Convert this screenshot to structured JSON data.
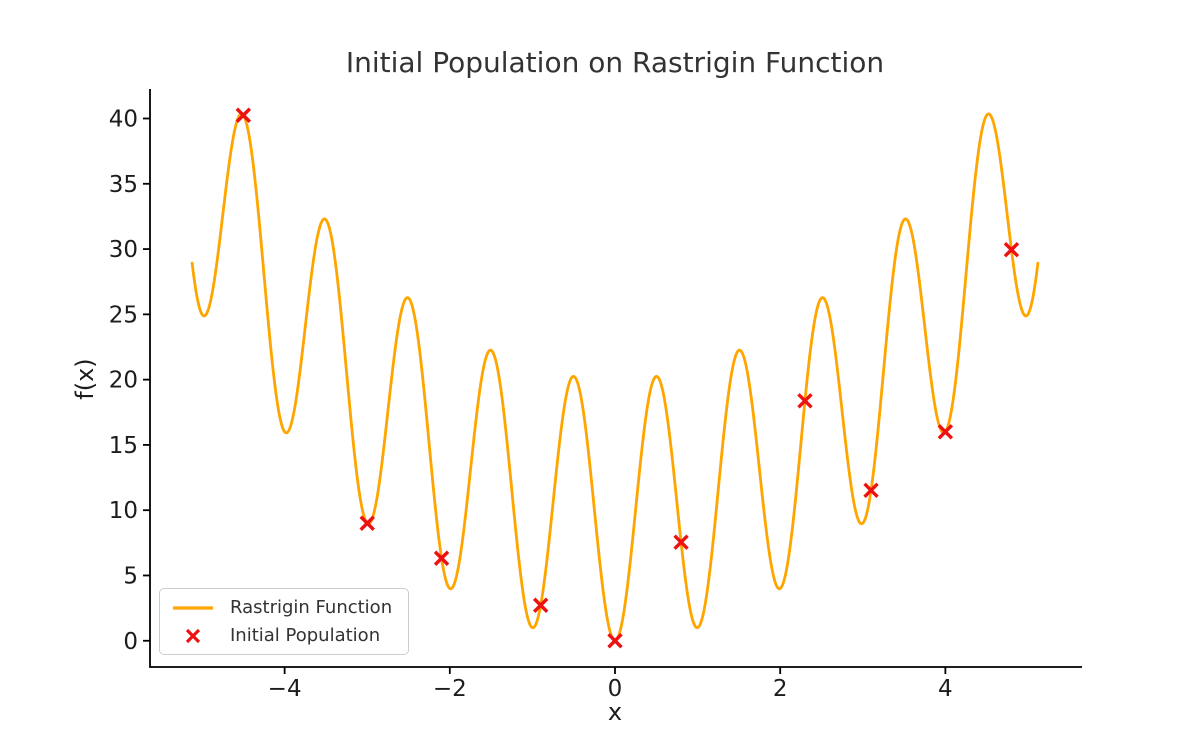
{
  "figure": {
    "background": "#ffffff",
    "spine_color": "#000000",
    "tick_text_color": "#1c1c1c",
    "title_color": "#333333"
  },
  "chart_data": {
    "type": "line",
    "title": "Initial Population on Rastrigin Function",
    "xlabel": "x",
    "ylabel": "f(x)",
    "xlim": [
      -5.63,
      5.63
    ],
    "ylim": [
      -2.01,
      42.26
    ],
    "xticks": [
      -4,
      -2,
      0,
      2,
      4
    ],
    "yticks": [
      0,
      5,
      10,
      15,
      20,
      25,
      30,
      35,
      40
    ],
    "grid": false,
    "legend_position": "lower left",
    "series": [
      {
        "name": "Rastrigin Function",
        "type": "line",
        "color": "#FFA500",
        "linewidth": 2.8,
        "formula": "f(x) = 10 + x^2 - 10*cos(2*pi*x)",
        "x_range": [
          -5.12,
          5.12
        ]
      },
      {
        "name": "Initial Population",
        "type": "scatter",
        "marker": "x",
        "color": "#EE1111",
        "x": [
          -4.5,
          -3.0,
          -2.1,
          -0.9,
          0.0,
          0.8,
          2.3,
          3.1,
          4.0,
          4.8
        ],
        "y": [
          40.25,
          9.0,
          6.32,
          2.72,
          0.0,
          7.55,
          18.38,
          11.52,
          16.0,
          29.95
        ]
      }
    ]
  }
}
